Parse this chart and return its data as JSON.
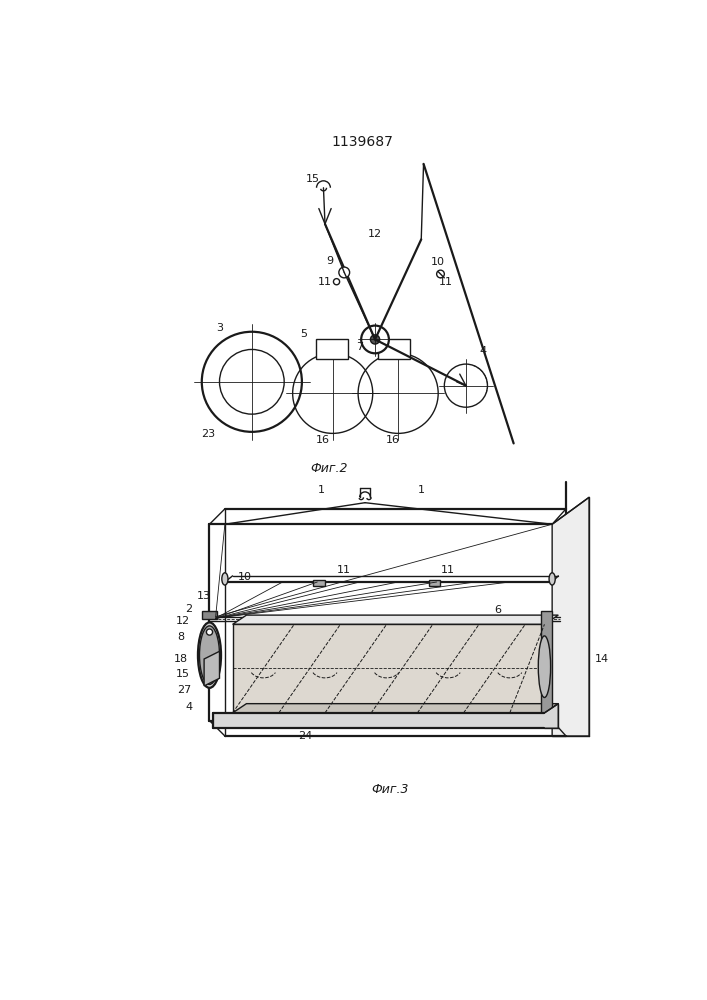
{
  "title": "1139687",
  "fig2_label": "Фиг.2",
  "fig3_label": "Фиг.3",
  "line_color": "#1a1a1a",
  "bg_color": "#ffffff",
  "lw": 1.0,
  "lw_thick": 1.6,
  "lw_thin": 0.6
}
